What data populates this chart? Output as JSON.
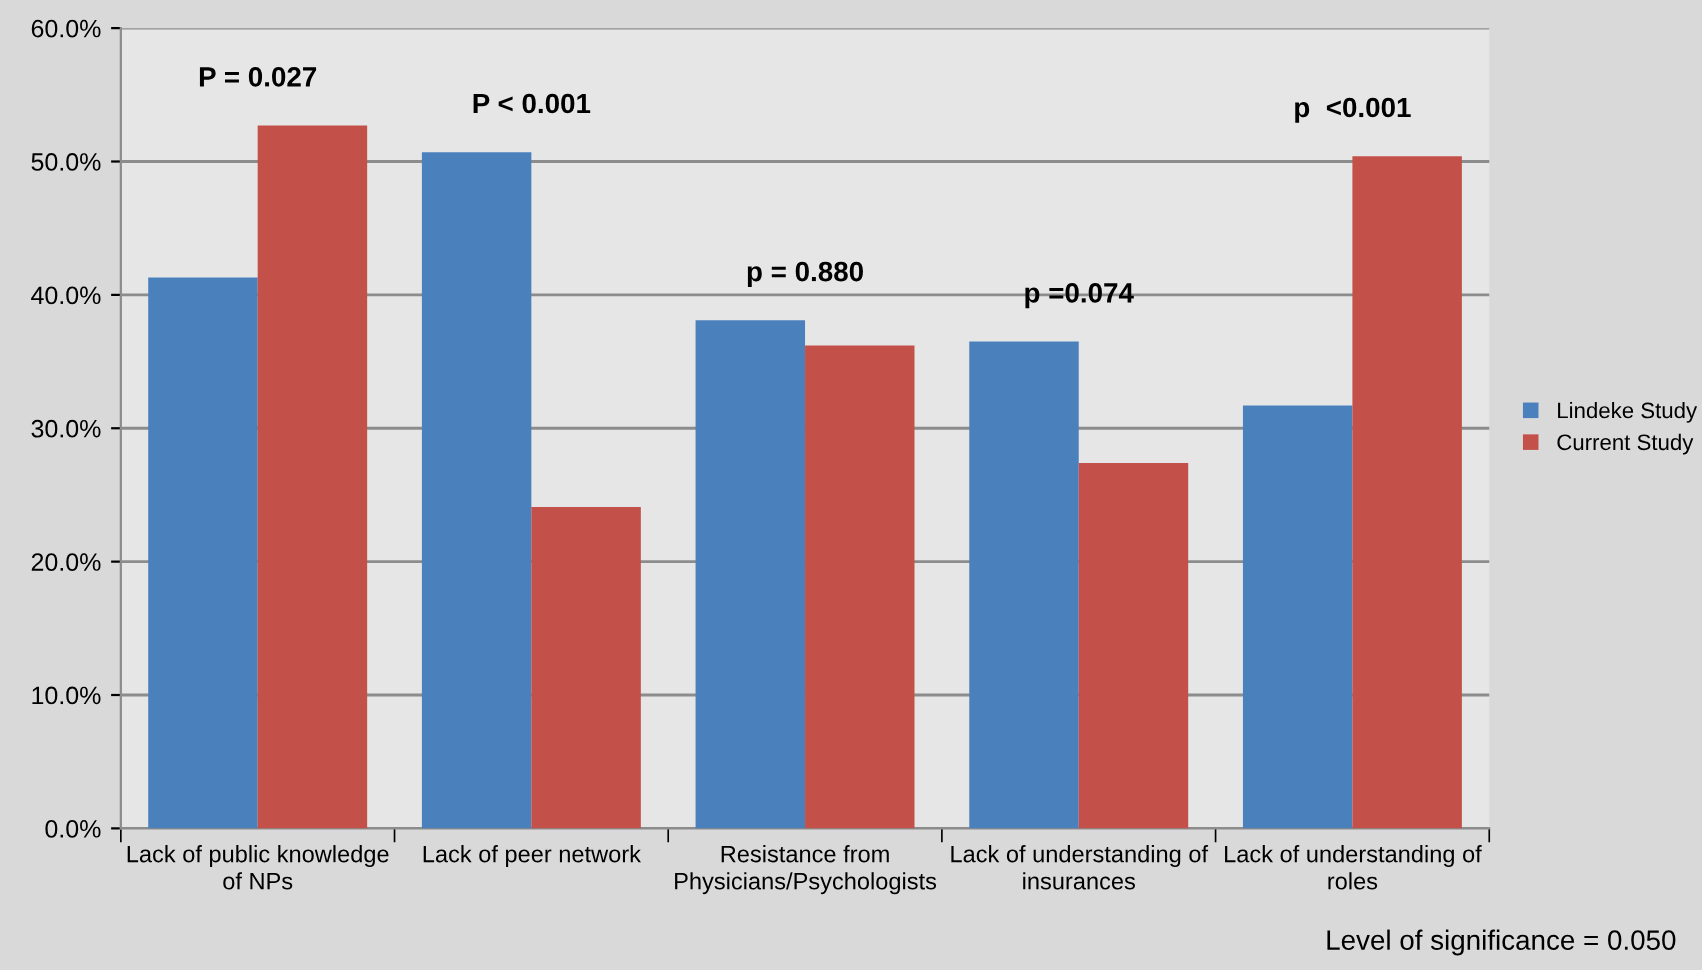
{
  "chart_data": {
    "type": "bar",
    "categories": [
      "Lack of public knowledge\nof NPs",
      "Lack of peer network",
      "Resistance from\nPhysicians/Psychologists",
      "Lack of understanding of\ninsurances",
      "Lack of understanding of\nroles"
    ],
    "series": [
      {
        "name": "Lindeke Study",
        "color": "#4a81bd",
        "values": [
          41.3,
          50.7,
          38.1,
          36.5,
          31.7
        ]
      },
      {
        "name": "Current Study",
        "color": "#c4504a",
        "values": [
          52.7,
          24.1,
          36.2,
          27.4,
          50.4
        ]
      }
    ],
    "ylim": [
      0,
      60
    ],
    "yticks": [
      {
        "value": 0,
        "label": "0.0%"
      },
      {
        "value": 10,
        "label": "10.0%"
      },
      {
        "value": 20,
        "label": "20.0%"
      },
      {
        "value": 30,
        "label": "30.0%"
      },
      {
        "value": 40,
        "label": "40.0%"
      },
      {
        "value": 50,
        "label": "50.0%"
      },
      {
        "value": 60,
        "label": "60.0%"
      }
    ],
    "grid": "y",
    "legend": "right",
    "annotations": [
      "P = 0.027",
      "P < 0.001",
      "p = 0.880",
      "p =0.074",
      "p  <0.001",
      "Level of significance = 0.050"
    ]
  }
}
